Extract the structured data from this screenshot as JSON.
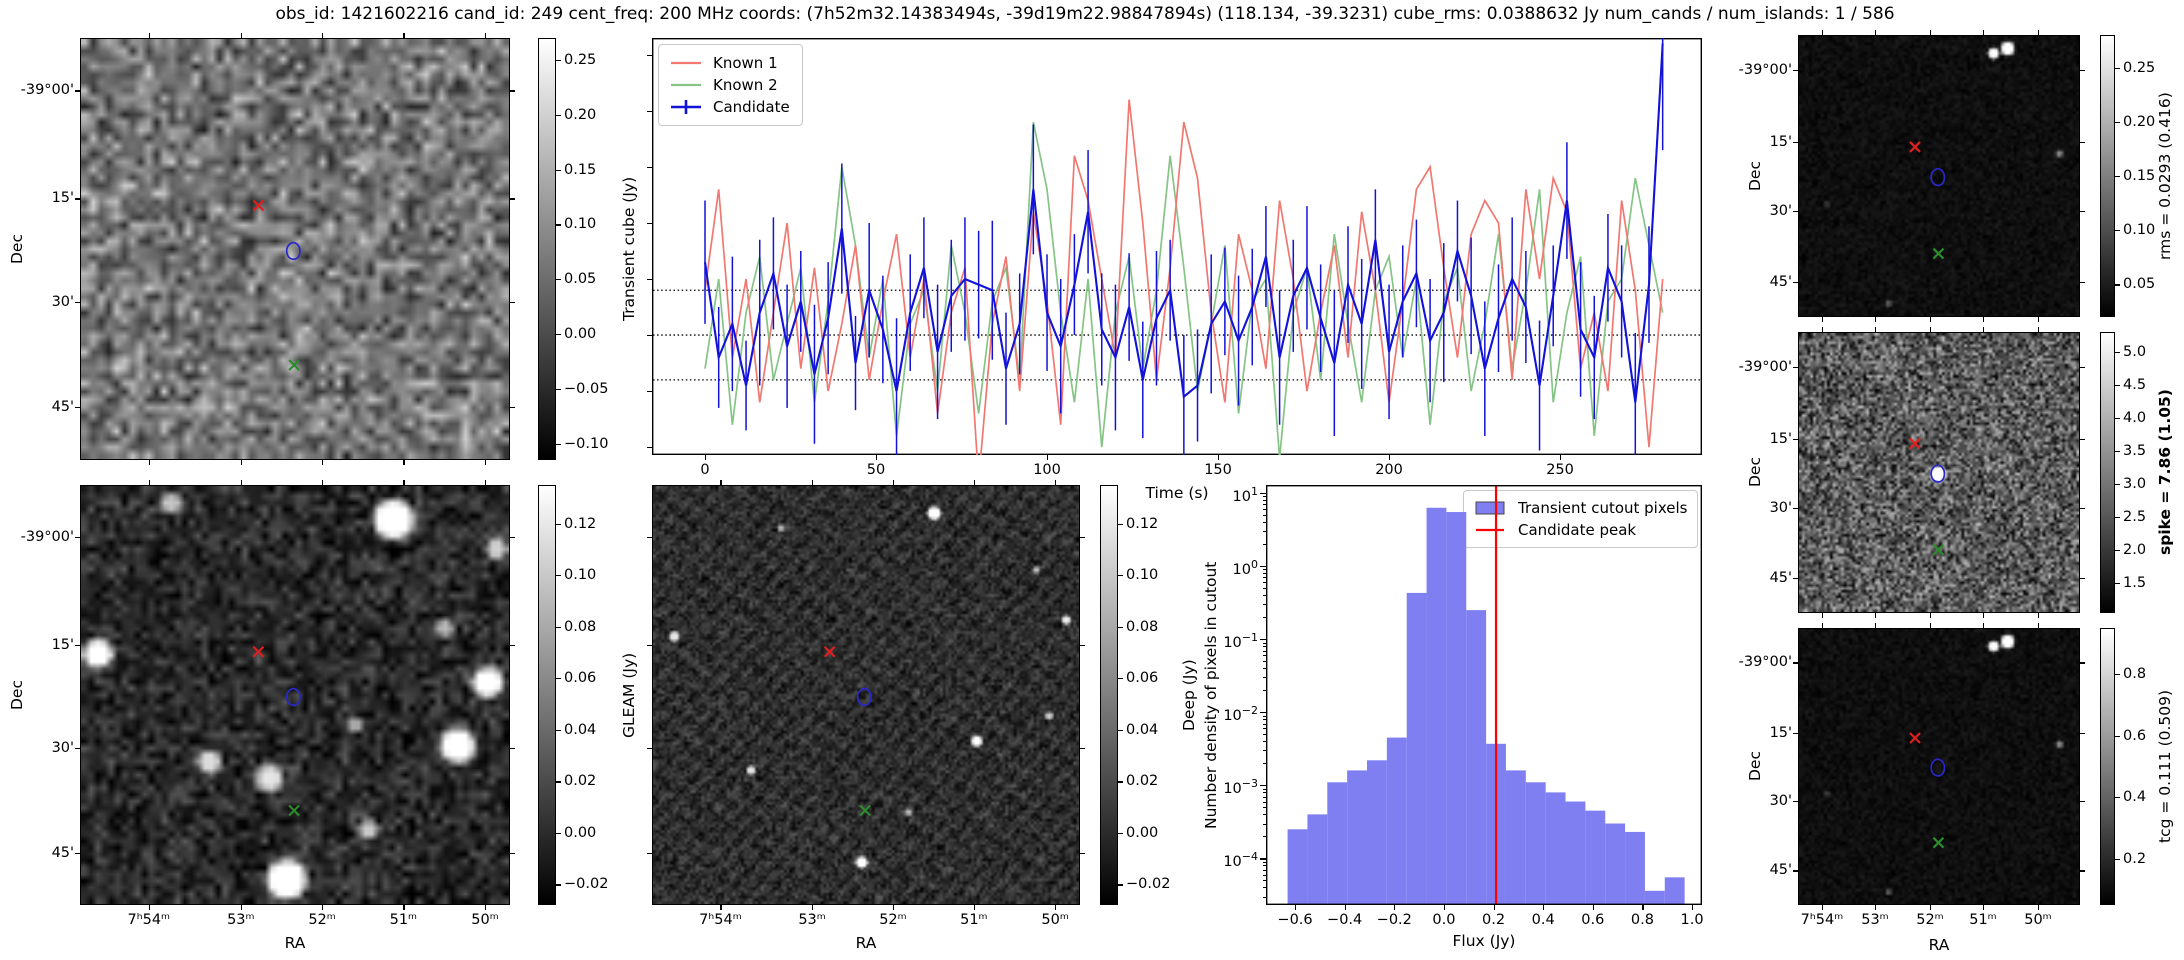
{
  "title": "obs_id: 1421602216 cand_id: 249 cent_freq: 200 MHz coords: (7h52m32.14383494s, -39d19m22.98847894s) (118.134, -39.3231) cube_rms: 0.0388632 Jy num_cands / num_islands: 1 / 586",
  "axis_labels": {
    "dec": "Dec",
    "ra": "RA",
    "time": "Time (s)",
    "flux": "Flux (Jy)",
    "hist_y": "Number density of pixels in cutout"
  },
  "dec_tick_labels": [
    "-39°00'",
    "15'",
    "30'",
    "45'"
  ],
  "ra_tick_labels": [
    "7ʰ54ᵐ",
    "53ᵐ",
    "52ᵐ",
    "51ᵐ",
    "50ᵐ"
  ],
  "colorbars": {
    "transient": {
      "label": "Transient cube (Jy)",
      "ticks": [
        "0.25",
        "0.20",
        "0.15",
        "0.10",
        "0.05",
        "0.00",
        "−0.05",
        "−0.10"
      ],
      "vmin": -0.115,
      "vmax": 0.27
    },
    "gleam": {
      "label": "GLEAM (Jy)",
      "ticks": [
        "0.12",
        "0.10",
        "0.08",
        "0.06",
        "0.04",
        "0.02",
        "0.00",
        "−0.02"
      ],
      "vmin": -0.028,
      "vmax": 0.135
    },
    "deep": {
      "label": "Deep (Jy)",
      "ticks": [
        "0.12",
        "0.10",
        "0.08",
        "0.06",
        "0.04",
        "0.02",
        "0.00",
        "−0.02"
      ],
      "vmin": -0.028,
      "vmax": 0.135
    },
    "rms": {
      "label": "rms = 0.0293 (0.416)",
      "ticks": [
        "0.25",
        "0.20",
        "0.15",
        "0.10",
        "0.05"
      ],
      "vmin": 0.02,
      "vmax": 0.28
    },
    "spike": {
      "label": "spike = 7.86 (1.05)",
      "bold": true,
      "ticks": [
        "5.0",
        "4.5",
        "4.0",
        "3.5",
        "3.0",
        "2.5",
        "2.0",
        "1.5"
      ],
      "vmin": 1.05,
      "vmax": 5.3
    },
    "tcg": {
      "label": "tcg = 0.111 (0.509)",
      "ticks": [
        "0.8",
        "0.6",
        "0.4",
        "0.2"
      ],
      "vmin": 0.05,
      "vmax": 0.95
    }
  },
  "markers": {
    "known1_cross": {
      "color": "#dd2020",
      "x": 0.415,
      "y": 0.397
    },
    "known2_cross": {
      "color": "#2e8b2e",
      "x": 0.498,
      "y": 0.775
    },
    "candidate_contour": {
      "color": "#2828cc",
      "x": 0.497,
      "y": 0.506
    }
  },
  "chart_data": [
    {
      "type": "line",
      "title": "",
      "xlabel": "Time (s)",
      "ylabel": "Transient cube (Jy)",
      "xlim": [
        -15.5,
        291.5
      ],
      "ylim": [
        -0.107,
        0.265
      ],
      "x_ticks": [
        0,
        50,
        100,
        150,
        200,
        250
      ],
      "y_ticks": [
        0.25,
        0.2,
        0.15,
        0.1,
        0.05,
        0.0,
        -0.05,
        -0.1
      ],
      "dotted_hlines": [
        0.04,
        0.0,
        -0.04
      ],
      "x_step": 4,
      "legend_position": "upper left",
      "series": [
        {
          "name": "Known 1",
          "color": "#f07870",
          "values": [
            0.04,
            0.13,
            -0.02,
            0.05,
            -0.06,
            0.02,
            0.1,
            -0.03,
            0.06,
            -0.05,
            0.01,
            0.08,
            -0.04,
            0.03,
            0.09,
            -0.02,
            0.05,
            -0.07,
            0.02,
            0.06,
            -0.13,
            0.01,
            0.07,
            -0.05,
            0.11,
            0.03,
            -0.08,
            0.16,
            0.12,
            0.05,
            -0.02,
            0.21,
            0.1,
            -0.04,
            0.06,
            0.19,
            0.14,
            0.02,
            -0.06,
            0.09,
            0.04,
            -0.03,
            0.12,
            0.05,
            -0.05,
            0.02,
            0.08,
            -0.02,
            0.11,
            0.04,
            -0.06,
            0.03,
            0.13,
            0.15,
            0.06,
            -0.02,
            0.09,
            0.12,
            0.1,
            -0.04,
            0.13,
            0.05,
            0.14,
            0.11,
            -0.03,
            0.02,
            -0.05,
            0.12,
            0.04,
            -0.1,
            0.05
          ]
        },
        {
          "name": "Known 2",
          "color": "#86c486",
          "values": [
            -0.03,
            0.05,
            -0.08,
            0.02,
            0.07,
            -0.04,
            0.01,
            0.06,
            -0.06,
            0.03,
            0.15,
            0.08,
            -0.02,
            0.05,
            -0.09,
            0.01,
            0.04,
            -0.05,
            0.08,
            0.02,
            -0.07,
            0.03,
            0.06,
            -0.04,
            0.19,
            0.13,
            0.02,
            -0.06,
            0.05,
            -0.1,
            0.02,
            0.07,
            -0.03,
            0.04,
            0.16,
            0.06,
            -0.05,
            0.01,
            0.08,
            -0.07,
            0.03,
            0.05,
            -0.11,
            0.02,
            0.06,
            -0.04,
            0.09,
            0.01,
            -0.06,
            0.04,
            0.07,
            -0.02,
            0.05,
            -0.08,
            0.03,
            0.06,
            -0.05,
            0.01,
            0.09,
            -0.03,
            0.04,
            0.13,
            -0.06,
            0.02,
            0.07,
            -0.09,
            0.03,
            0.05,
            0.14,
            0.08,
            0.02
          ]
        },
        {
          "name": "Candidate",
          "color": "#1212d8",
          "values": [
            0.065,
            -0.02,
            0.01,
            -0.045,
            0.02,
            0.055,
            -0.01,
            0.03,
            -0.035,
            0.015,
            0.095,
            -0.025,
            0.04,
            0.005,
            -0.05,
            0.02,
            0.06,
            -0.015,
            0.035,
            0.05,
            0.045,
            0.04,
            -0.03,
            0.01,
            0.13,
            0.02,
            -0.01,
            0.045,
            0.11,
            0.005,
            -0.02,
            0.025,
            -0.04,
            0.015,
            0.04,
            -0.055,
            -0.045,
            0.01,
            0.03,
            -0.005,
            0.025,
            0.07,
            -0.02,
            0.035,
            0.06,
            0.015,
            -0.025,
            0.045,
            0.01,
            0.085,
            -0.015,
            0.03,
            0.055,
            -0.005,
            0.02,
            0.075,
            0.035,
            -0.03,
            0.015,
            0.05,
            0.025,
            -0.045,
            0.035,
            0.12,
            0.005,
            -0.02,
            0.06,
            0.03,
            -0.06,
            0.045,
            0.26
          ],
          "yerr": [
            0.055,
            0.045,
            0.06,
            0.04,
            0.065,
            0.05,
            0.055,
            0.045,
            0.062,
            0.05,
            0.058,
            0.042,
            0.06,
            0.048,
            0.065,
            0.052,
            0.045,
            0.06,
            0.05,
            0.055,
            0.048,
            0.062,
            0.05,
            0.045,
            0.058,
            0.052,
            0.06,
            0.045,
            0.055,
            0.05,
            0.065,
            0.048,
            0.052,
            0.06,
            0.045,
            0.055,
            0.05,
            0.062,
            0.048,
            0.058,
            0.052,
            0.045,
            0.06,
            0.05,
            0.055,
            0.048,
            0.065,
            0.052,
            0.058,
            0.045,
            0.06,
            0.05,
            0.048,
            0.055,
            0.062,
            0.045,
            0.052,
            0.06,
            0.048,
            0.055,
            0.05,
            0.058,
            0.045,
            0.052,
            0.06,
            0.055,
            0.048,
            0.05,
            0.062,
            0.052,
            0.095
          ]
        }
      ]
    },
    {
      "type": "histogram",
      "xlabel": "Flux (Jy)",
      "ylabel": "Number density of pixels in cutout",
      "bar_color": "#7f7ff2",
      "peak_color": "#ff0000",
      "bin_start": -0.63,
      "bin_width": 0.08,
      "values": [
        0.00025,
        0.0004,
        0.0011,
        0.0016,
        0.0022,
        0.0045,
        0.43,
        6.3,
        5.5,
        0.25,
        0.0037,
        0.0016,
        0.0011,
        0.0008,
        0.0006,
        0.00045,
        0.0003,
        0.00023,
        3.6e-05,
        5.5e-05
      ],
      "candidate_peak": 0.21,
      "x_ticks": [
        "−0.6",
        "−0.4",
        "−0.2",
        "0.0",
        "0.2",
        "0.4",
        "0.6",
        "0.8",
        "1.0"
      ],
      "x_tick_values": [
        -0.6,
        -0.4,
        -0.2,
        0.0,
        0.2,
        0.4,
        0.6,
        0.8,
        1.0
      ],
      "y_tick_exponents": [
        1,
        0,
        -1,
        -2,
        -3,
        -4
      ],
      "xlim": [
        -0.717,
        1.04
      ],
      "ylog_top": 12.9,
      "ylog_bottom": 2.3e-05,
      "legend": [
        "Transient cutout pixels",
        "Candidate peak"
      ]
    }
  ]
}
